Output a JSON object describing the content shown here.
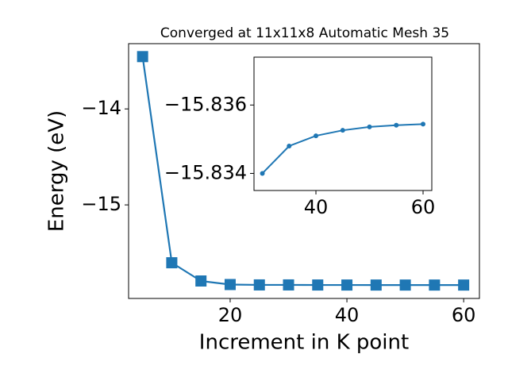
{
  "chart_data": [
    {
      "type": "line",
      "title": "Converged at 11x11x8 Automatic Mesh 35",
      "x_label": "Increment in K point",
      "y_label": "Energy (eV)",
      "x": [
        5,
        10,
        15,
        20,
        25,
        30,
        35,
        40,
        45,
        50,
        55,
        60
      ],
      "series": [
        {
          "color": "#1f77b4",
          "marker": "square",
          "values": [
            -13.455,
            -15.603,
            -15.793,
            -15.83,
            -15.834,
            -15.834,
            -15.8348,
            -15.8351,
            -15.8353,
            -15.8354,
            -15.8354,
            -15.8354
          ]
        }
      ],
      "xlim": [
        2.6,
        62.7
      ],
      "ylim": [
        -15.975,
        -13.32
      ],
      "xticks": [
        20,
        40,
        60
      ],
      "yticks": [
        {
          "value": -14,
          "label": "−14"
        },
        {
          "value": -15,
          "label": "−15"
        }
      ]
    },
    {
      "type": "line",
      "x": [
        30,
        35,
        40,
        45,
        50,
        55,
        60
      ],
      "series": [
        {
          "color": "#1f77b4",
          "marker": "circle",
          "values": [
            -15.834,
            -15.8348,
            -15.8351,
            -15.83526,
            -15.83536,
            -15.83541,
            -15.83544
          ]
        }
      ],
      "xlim": [
        28.44,
        61.63
      ],
      "ylim": [
        -15.8335,
        -15.8374
      ],
      "xticks": [
        40,
        60
      ],
      "yticks": [
        {
          "value": -15.836,
          "label": "−15.836"
        },
        {
          "value": -15.834,
          "label": "−15.834"
        }
      ]
    }
  ]
}
